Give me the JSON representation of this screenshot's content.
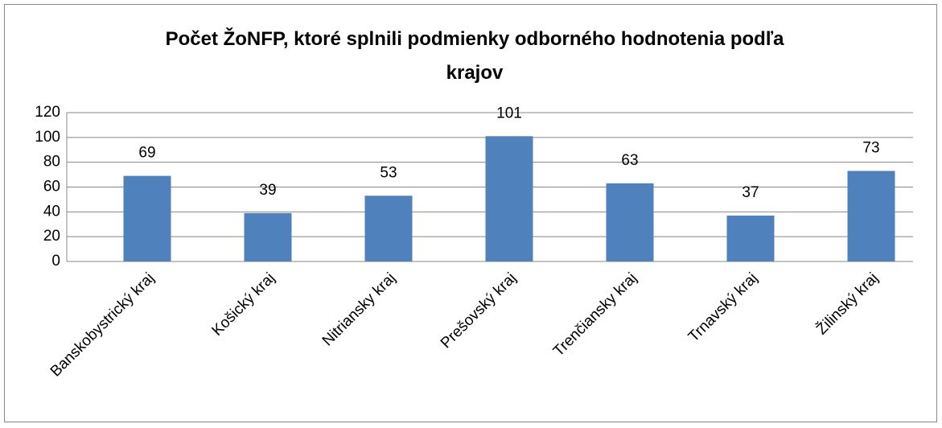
{
  "chart_data": {
    "type": "bar",
    "title": "Počet ŽoNFP, ktoré splnili podmienky odborného hodnotenia podľa krajov",
    "categories": [
      "Banskobystrický kraj",
      "Košický kraj",
      "Nitriansky kraj",
      "Prešovský kraj",
      "Trenčiansky kraj",
      "Trnavský kraj",
      "Žilinský kraj"
    ],
    "values": [
      69,
      39,
      53,
      101,
      63,
      37,
      73
    ],
    "color": "#4f81bd",
    "ylim": [
      0,
      120
    ],
    "yticks": [
      0,
      20,
      40,
      60,
      80,
      100,
      120
    ],
    "grid": true
  }
}
